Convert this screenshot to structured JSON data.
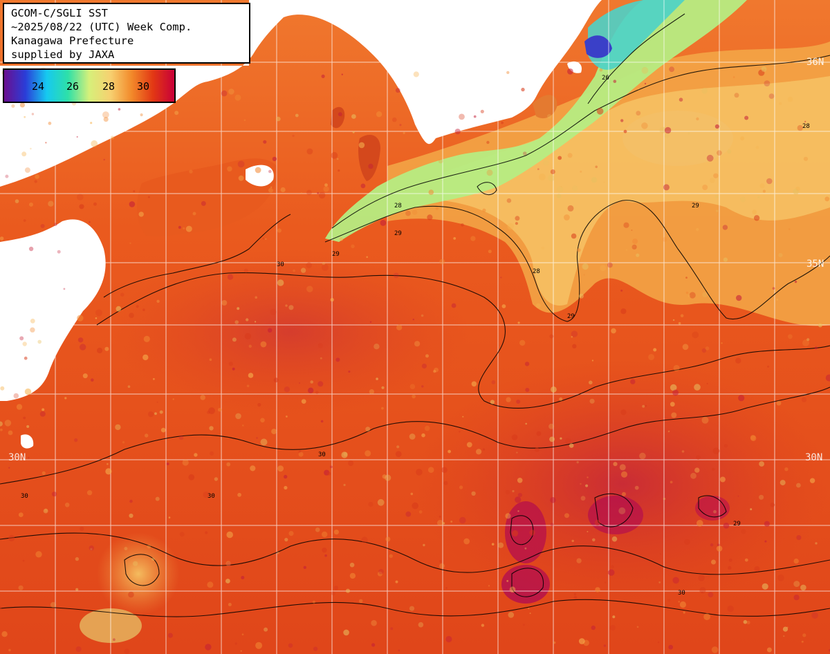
{
  "title": {
    "line1": "GCOM-C/SGLI SST",
    "line2": "~2025/08/22 (UTC) Week Comp.",
    "line3": "Kanagawa Prefecture",
    "line4": "supplied by JAXA"
  },
  "legend": {
    "ticks": [
      "24",
      "26",
      "28",
      "30"
    ],
    "range": [
      22,
      32
    ],
    "colors": [
      "#6a0f8f",
      "#2a3dd8",
      "#16c9f0",
      "#2ee0a8",
      "#d6f07a",
      "#f7d070",
      "#f2892a",
      "#e23814",
      "#c80038"
    ]
  },
  "lat_labels": {
    "n36": "36N",
    "n35": "35N",
    "n30_left": "30N",
    "n30_right": "30N"
  },
  "contour_labels": [
    "29",
    "28",
    "29",
    "30",
    "30",
    "29",
    "28",
    "29",
    "30",
    "30",
    "30",
    "28",
    "29",
    "26"
  ],
  "colors": {
    "land": "#ffffff",
    "sea_warm": "#e8501a",
    "sea_hot": "#c81a2a",
    "sea_cool": "#f5c060",
    "coastal_cool": "#9ee87a",
    "grid": "#ffffff",
    "contour": "#000000"
  }
}
